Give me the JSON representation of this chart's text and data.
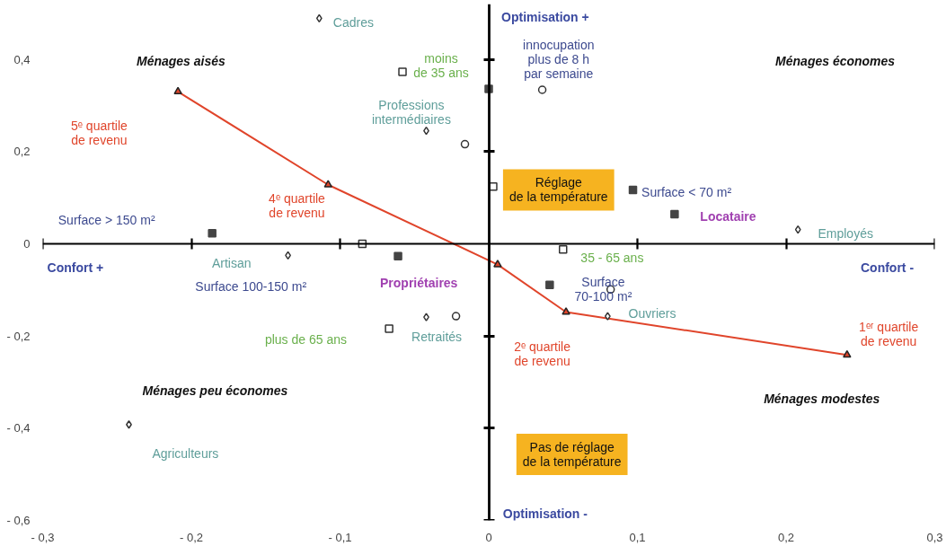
{
  "chart_data": {
    "type": "scatter",
    "xlim": [
      -0.3,
      0.3
    ],
    "ylim": [
      -0.6,
      0.52
    ],
    "xticks": [
      {
        "value": -0.3,
        "label": "- 0,3"
      },
      {
        "value": -0.2,
        "label": "- 0,2"
      },
      {
        "value": -0.1,
        "label": "- 0,1"
      },
      0,
      {
        "value": 0.1,
        "label": "0,1"
      },
      {
        "value": 0.2,
        "label": "0,2"
      },
      {
        "value": 0.3,
        "label": "0,3"
      }
    ],
    "yticks": [
      {
        "value": -0.6,
        "label": "- 0,6"
      },
      {
        "value": -0.4,
        "label": "- 0,4"
      },
      {
        "value": -0.2,
        "label": "- 0,2"
      },
      0,
      {
        "value": 0.2,
        "label": "0,2"
      },
      {
        "value": 0.4,
        "label": "0,4"
      }
    ],
    "series": [
      {
        "type": "line",
        "marker": "triangle",
        "color": "#e0452b",
        "x": [
          -0.209,
          -0.108,
          0.006,
          0.052,
          0.241
        ],
        "values": [
          0.33,
          0.128,
          -0.045,
          -0.148,
          -0.241
        ]
      },
      {
        "marker": "diamond",
        "color": "#333333",
        "x": [
          -0.114,
          -0.042,
          0.208,
          -0.135,
          -0.042,
          0.08,
          -0.242
        ],
        "values": [
          0.489,
          0.245,
          0.031,
          -0.025,
          -0.159,
          -0.157,
          -0.392
        ]
      },
      {
        "marker": "square",
        "color": "#333333",
        "x": [
          -0.058,
          0.05,
          -0.067,
          0.003,
          -0.085
        ],
        "values": [
          0.373,
          -0.012,
          -0.184,
          0.124,
          0.0
        ]
      },
      {
        "marker": "square",
        "color": "#444444",
        "x": [
          0.0,
          0.097,
          0.125,
          -0.186,
          -0.061,
          0.041
        ],
        "values": [
          0.336,
          0.117,
          0.064,
          0.023,
          -0.027,
          -0.089
        ]
      },
      {
        "marker": "circle",
        "color": "#333333",
        "x": [
          0.036,
          -0.016,
          -0.022,
          0.082
        ],
        "values": [
          0.334,
          0.216,
          -0.157,
          -0.099
        ]
      }
    ],
    "annotations": [
      "Cadres",
      "Optimisation +",
      "innocupation\nplus de 8 h\npar semaine",
      "Ménages aisés",
      "Ménages économes",
      "moins\nde 35 ans",
      "Professions\nintermédiaires",
      "5ᵉ quartile\nde revenu",
      "Réglage\nde la température",
      "Surface < 70 m²",
      "Locataire",
      "Employés",
      "4ᵉ quartile\nde revenu",
      "Surface > 150 m²",
      "Confort +",
      "Confort -",
      "Artisan",
      "35 - 65 ans",
      "Surface 100-150 m²",
      "Propriétaires",
      "Surface\n70-100 m²",
      "Ouvriers",
      "1ᵉʳ quartile\nde revenu",
      "plus de 65 ans",
      "Retraités",
      "2ᵉ quartile\nde revenu",
      "Ménages peu économes",
      "Ménages modestes",
      "Agriculteurs",
      "Pas de réglage\nde la température",
      "Optimisation -"
    ]
  }
}
